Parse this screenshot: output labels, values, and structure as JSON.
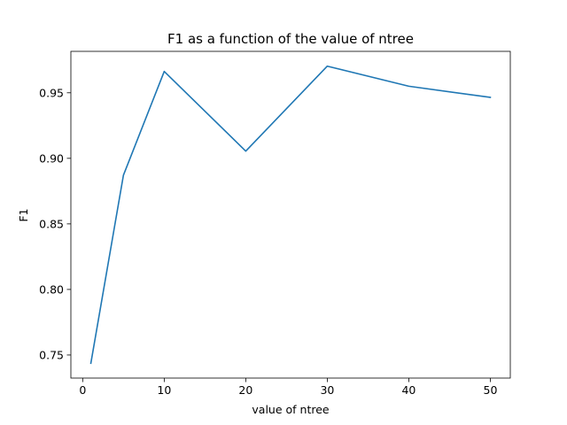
{
  "chart_data": {
    "type": "line",
    "title": "F1 as a function of the value of ntree",
    "xlabel": "value of ntree",
    "ylabel": "F1",
    "x": [
      1,
      5,
      10,
      20,
      30,
      40,
      50
    ],
    "series": [
      {
        "values": [
          0.7437,
          0.8872,
          0.9663,
          0.9055,
          0.9703,
          0.955,
          0.9465
        ]
      }
    ],
    "xlim": [
      -1.45,
      52.45
    ],
    "ylim": [
      0.7324,
      0.9816
    ],
    "xticks": [
      0,
      10,
      20,
      30,
      40,
      50
    ],
    "xtick_labels": [
      "0",
      "10",
      "20",
      "30",
      "40",
      "50"
    ],
    "yticks": [
      0.75,
      0.8,
      0.85,
      0.9,
      0.95
    ],
    "ytick_labels": [
      "0.75",
      "0.80",
      "0.85",
      "0.90",
      "0.95"
    ],
    "grid": false,
    "colors": {
      "line": "#1f77b4",
      "axes": "#000000",
      "background": "#ffffff"
    }
  }
}
